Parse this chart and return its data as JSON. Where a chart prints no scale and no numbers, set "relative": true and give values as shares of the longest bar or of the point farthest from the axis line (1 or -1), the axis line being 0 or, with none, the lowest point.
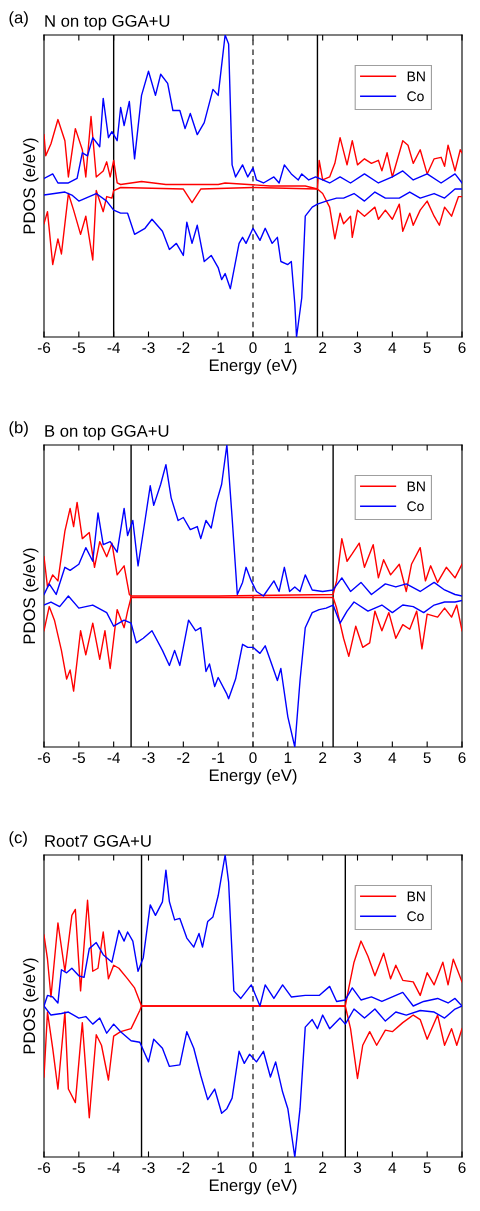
{
  "chart_data": [
    {
      "type": "line",
      "title": "N on top GGA+U",
      "annotations": [
        "(a)"
      ],
      "xlabel": "Energy (eV)",
      "ylabel": "PDOS (e/eV)",
      "relative": true,
      "xlim": [
        -6,
        6
      ],
      "xticks": [
        -6,
        -5,
        -4,
        -3,
        -2,
        -1,
        0,
        1,
        2,
        3,
        4,
        5,
        6
      ],
      "tick_labels": "x",
      "grid": false,
      "legend": "top right",
      "ref_lines": [
        {
          "axis": "x",
          "value": -4.0,
          "color": "#000000",
          "line_style": "solid"
        },
        {
          "axis": "x",
          "value": 1.85,
          "color": "#000000",
          "line_style": "solid"
        },
        {
          "axis": "x",
          "value": 0,
          "color": "#333333",
          "line_style": "dashed"
        }
      ],
      "series": [
        {
          "name": "BN",
          "color": "#ff0000",
          "x": [
            -6,
            -5.95,
            -5.8,
            -5.6,
            -5.4,
            -5.3,
            -5.1,
            -4.9,
            -4.8,
            -4.65,
            -4.5,
            -4.3,
            -4.2,
            -4.1,
            -4.0,
            -3.9,
            -3.8,
            -3.2,
            -2.5,
            -1.0,
            -0.8,
            0.5,
            1.5,
            1.85,
            1.9,
            2.0,
            2.2,
            2.35,
            2.5,
            2.7,
            2.85,
            3.0,
            3.2,
            3.4,
            3.6,
            3.7,
            3.85,
            4.0,
            4.3,
            4.45,
            4.6,
            4.8,
            5.0,
            5.2,
            5.4,
            5.5,
            5.6,
            5.8,
            5.95,
            6.0
          ],
          "values": [
            0.67,
            0.6,
            0.64,
            0.72,
            0.65,
            0.53,
            0.69,
            0.62,
            0.53,
            0.73,
            0.53,
            0.55,
            0.58,
            0.53,
            0.585,
            0.51,
            0.505,
            0.515,
            0.505,
            0.505,
            0.51,
            0.5,
            0.5,
            0.49,
            0.585,
            0.52,
            0.53,
            0.575,
            0.66,
            0.57,
            0.65,
            0.57,
            0.59,
            0.575,
            0.585,
            0.55,
            0.61,
            0.53,
            0.65,
            0.635,
            0.575,
            0.62,
            0.54,
            0.59,
            0.595,
            0.565,
            0.635,
            0.55,
            0.62,
            0.61
          ]
        },
        {
          "color": "#ff0000",
          "x": [
            -6,
            -5.9,
            -5.75,
            -5.6,
            -5.5,
            -5.3,
            -5.15,
            -4.95,
            -4.8,
            -4.6,
            -4.5,
            -4.3,
            -4.2,
            -4.05,
            -4.0,
            -3.8,
            -2.0,
            -1.75,
            -1.5,
            0,
            1.85,
            1.9,
            2.0,
            2.2,
            2.35,
            2.5,
            2.6,
            2.8,
            2.85,
            3.0,
            3.2,
            3.5,
            3.6,
            3.8,
            4.0,
            4.2,
            4.3,
            4.5,
            4.6,
            4.8,
            5.0,
            5.2,
            5.35,
            5.5,
            5.7,
            5.9,
            6.0
          ],
          "values": [
            0.375,
            0.415,
            0.24,
            0.325,
            0.275,
            0.475,
            0.42,
            0.34,
            0.4,
            0.255,
            0.485,
            0.415,
            0.465,
            0.46,
            0.485,
            0.495,
            0.49,
            0.445,
            0.49,
            0.495,
            0.49,
            0.485,
            0.475,
            0.43,
            0.325,
            0.41,
            0.375,
            0.4,
            0.33,
            0.42,
            0.4,
            0.43,
            0.39,
            0.42,
            0.39,
            0.44,
            0.35,
            0.41,
            0.37,
            0.42,
            0.45,
            0.4,
            0.37,
            0.43,
            0.4,
            0.465,
            0.465
          ]
        },
        {
          "name": "Co",
          "color": "#0000ff",
          "x": [
            -6,
            -5.75,
            -5.6,
            -5.3,
            -5.05,
            -4.9,
            -4.75,
            -4.6,
            -4.4,
            -4.3,
            -4.15,
            -4.05,
            -3.9,
            -3.8,
            -3.7,
            -3.55,
            -3.4,
            -3.2,
            -3.0,
            -2.8,
            -2.65,
            -2.45,
            -2.3,
            -2.1,
            -1.95,
            -1.8,
            -1.6,
            -1.4,
            -1.15,
            -1.0,
            -0.8,
            -0.7,
            -0.6,
            -0.5,
            -0.3,
            -0.15,
            0,
            0.1,
            0.3,
            0.6,
            0.75,
            0.9,
            1.1,
            1.3,
            1.4,
            1.6,
            1.8,
            2.0,
            2.2,
            2.5,
            2.8,
            3.2,
            3.6,
            4.0,
            4.3,
            4.6,
            5.0,
            5.4,
            5.8,
            6.0
          ],
          "values": [
            0.525,
            0.54,
            0.51,
            0.51,
            0.525,
            0.61,
            0.6,
            0.66,
            0.63,
            0.79,
            0.66,
            0.68,
            0.65,
            0.76,
            0.7,
            0.78,
            0.59,
            0.8,
            0.88,
            0.8,
            0.87,
            0.84,
            0.75,
            0.75,
            0.69,
            0.74,
            0.67,
            0.71,
            0.82,
            0.8,
            1.0,
            0.97,
            0.57,
            0.53,
            0.57,
            0.53,
            0.56,
            0.52,
            0.51,
            0.53,
            0.51,
            0.57,
            0.54,
            0.52,
            0.54,
            0.52,
            0.53,
            0.52,
            0.51,
            0.53,
            0.51,
            0.54,
            0.51,
            0.53,
            0.55,
            0.52,
            0.54,
            0.51,
            0.54,
            0.51
          ]
        },
        {
          "color": "#0000ff",
          "x": [
            -6,
            -5.7,
            -5.4,
            -5.2,
            -5.0,
            -4.8,
            -4.5,
            -4.2,
            -4.0,
            -3.8,
            -3.6,
            -3.4,
            -3.1,
            -2.9,
            -2.6,
            -2.4,
            -2.2,
            -2.0,
            -1.9,
            -1.75,
            -1.6,
            -1.4,
            -1.2,
            -1.0,
            -0.9,
            -0.8,
            -0.65,
            -0.4,
            -0.3,
            -0.2,
            0,
            0.2,
            0.35,
            0.55,
            0.7,
            0.8,
            1.0,
            1.1,
            1.2,
            1.25,
            1.4,
            1.5,
            1.7,
            1.85,
            2.1,
            2.4,
            2.6,
            2.9,
            3.2,
            3.5,
            3.8,
            4.2,
            4.5,
            4.8,
            5.2,
            5.5,
            5.8,
            6.0
          ],
          "values": [
            0.47,
            0.475,
            0.48,
            0.47,
            0.45,
            0.46,
            0.475,
            0.45,
            0.42,
            0.41,
            0.41,
            0.34,
            0.36,
            0.39,
            0.35,
            0.29,
            0.31,
            0.27,
            0.38,
            0.31,
            0.37,
            0.25,
            0.27,
            0.23,
            0.19,
            0.21,
            0.16,
            0.31,
            0.33,
            0.31,
            0.36,
            0.32,
            0.36,
            0.31,
            0.33,
            0.25,
            0.24,
            0.25,
            0.11,
            0.0,
            0.13,
            0.4,
            0.43,
            0.44,
            0.45,
            0.46,
            0.46,
            0.475,
            0.45,
            0.48,
            0.46,
            0.46,
            0.48,
            0.46,
            0.475,
            0.46,
            0.49,
            0.49
          ]
        }
      ]
    },
    {
      "type": "line",
      "title": "B on top GGA+U",
      "annotations": [
        "(b)"
      ],
      "xlabel": "Energy (eV)",
      "ylabel": "PDOS (e/eV)",
      "relative": true,
      "xlim": [
        -6,
        6
      ],
      "xticks": [
        -6,
        -5,
        -4,
        -3,
        -2,
        -1,
        0,
        1,
        2,
        3,
        4,
        5,
        6
      ],
      "tick_labels": "x",
      "grid": false,
      "legend": "top right",
      "ref_lines": [
        {
          "axis": "x",
          "value": -3.5,
          "color": "#000000",
          "line_style": "solid"
        },
        {
          "axis": "x",
          "value": 2.3,
          "color": "#000000",
          "line_style": "solid"
        },
        {
          "axis": "x",
          "value": 0,
          "color": "#333333",
          "line_style": "dashed"
        }
      ],
      "series": [
        {
          "name": "BN",
          "color": "#ff0000",
          "x": [
            -6,
            -5.9,
            -5.75,
            -5.6,
            -5.4,
            -5.25,
            -5.15,
            -5.05,
            -4.9,
            -4.7,
            -4.55,
            -4.4,
            -4.2,
            -4.05,
            -3.9,
            -3.7,
            -3.55,
            -3.5,
            -1.0,
            2.3,
            2.4,
            2.55,
            2.7,
            2.85,
            3.05,
            3.2,
            3.45,
            3.6,
            3.75,
            3.95,
            4.2,
            4.4,
            4.55,
            4.8,
            4.95,
            5.1,
            5.3,
            5.55,
            5.8,
            6.0
          ],
          "values": [
            0.63,
            0.53,
            0.57,
            0.55,
            0.715,
            0.79,
            0.73,
            0.81,
            0.69,
            0.71,
            0.595,
            0.68,
            0.63,
            0.675,
            0.57,
            0.6,
            0.505,
            0.5,
            0.5,
            0.505,
            0.55,
            0.69,
            0.615,
            0.64,
            0.675,
            0.595,
            0.67,
            0.56,
            0.62,
            0.57,
            0.605,
            0.515,
            0.605,
            0.66,
            0.55,
            0.6,
            0.545,
            0.595,
            0.56,
            0.605
          ]
        },
        {
          "color": "#ff0000",
          "x": [
            -6,
            -5.85,
            -5.7,
            -5.5,
            -5.35,
            -5.25,
            -5.15,
            -4.95,
            -4.8,
            -4.6,
            -4.4,
            -4.25,
            -4.1,
            -3.9,
            -3.7,
            -3.6,
            -3.5,
            2.3,
            2.4,
            2.6,
            2.75,
            2.95,
            3.15,
            3.35,
            3.5,
            3.7,
            3.9,
            4.1,
            4.3,
            4.5,
            4.7,
            4.85,
            5.0,
            5.3,
            5.5,
            5.7,
            5.85,
            6.0
          ],
          "values": [
            0.385,
            0.465,
            0.42,
            0.32,
            0.225,
            0.255,
            0.185,
            0.385,
            0.305,
            0.41,
            0.29,
            0.385,
            0.26,
            0.455,
            0.395,
            0.45,
            0.495,
            0.495,
            0.46,
            0.36,
            0.3,
            0.4,
            0.33,
            0.345,
            0.45,
            0.385,
            0.445,
            0.36,
            0.405,
            0.39,
            0.45,
            0.325,
            0.44,
            0.43,
            0.46,
            0.43,
            0.47,
            0.385
          ]
        },
        {
          "name": "Co",
          "color": "#0000ff",
          "x": [
            -6,
            -5.85,
            -5.65,
            -5.4,
            -5.25,
            -5.0,
            -4.8,
            -4.6,
            -4.45,
            -4.3,
            -4.1,
            -3.9,
            -3.7,
            -3.6,
            -3.45,
            -3.3,
            -3.1,
            -2.95,
            -2.85,
            -2.65,
            -2.5,
            -2.35,
            -2.15,
            -2.0,
            -1.8,
            -1.6,
            -1.5,
            -1.35,
            -1.2,
            -1.05,
            -0.9,
            -0.75,
            -0.6,
            -0.45,
            -0.3,
            -0.2,
            -0.05,
            0.1,
            0.3,
            0.6,
            0.75,
            0.9,
            1.05,
            1.2,
            1.35,
            1.5,
            1.7,
            2.0,
            2.3,
            2.55,
            2.8,
            3.1,
            3.4,
            3.8,
            4.1,
            4.4,
            4.8,
            5.2,
            5.5,
            5.8,
            6.0
          ],
          "values": [
            0.505,
            0.54,
            0.505,
            0.595,
            0.585,
            0.605,
            0.66,
            0.615,
            0.775,
            0.67,
            0.68,
            0.645,
            0.79,
            0.7,
            0.75,
            0.6,
            0.75,
            0.865,
            0.8,
            0.87,
            0.935,
            0.825,
            0.75,
            0.76,
            0.72,
            0.73,
            0.69,
            0.75,
            0.725,
            0.81,
            0.87,
            1.0,
            0.76,
            0.505,
            0.545,
            0.595,
            0.55,
            0.515,
            0.5,
            0.55,
            0.515,
            0.595,
            0.515,
            0.53,
            0.515,
            0.57,
            0.52,
            0.515,
            0.52,
            0.56,
            0.515,
            0.545,
            0.505,
            0.54,
            0.53,
            0.54,
            0.515,
            0.545,
            0.52,
            0.505,
            0.5
          ]
        },
        {
          "color": "#0000ff",
          "x": [
            -6,
            -5.8,
            -5.55,
            -5.3,
            -5.0,
            -4.6,
            -4.2,
            -4.0,
            -3.7,
            -3.5,
            -3.35,
            -3.15,
            -2.9,
            -2.6,
            -2.4,
            -2.25,
            -2.1,
            -1.85,
            -1.65,
            -1.5,
            -1.35,
            -1.25,
            -1.1,
            -1.0,
            -0.75,
            -0.7,
            -0.5,
            -0.3,
            -0.15,
            0,
            0.2,
            0.35,
            0.55,
            0.7,
            0.8,
            1.0,
            1.2,
            1.35,
            1.5,
            1.7,
            1.9,
            2.1,
            2.3,
            2.5,
            2.7,
            2.9,
            3.3,
            3.7,
            4.0,
            4.3,
            4.6,
            4.9,
            5.2,
            5.5,
            5.8,
            6.0
          ],
          "values": [
            0.47,
            0.48,
            0.465,
            0.5,
            0.46,
            0.47,
            0.445,
            0.4,
            0.42,
            0.41,
            0.345,
            0.36,
            0.385,
            0.32,
            0.27,
            0.32,
            0.27,
            0.42,
            0.385,
            0.395,
            0.25,
            0.275,
            0.2,
            0.23,
            0.175,
            0.16,
            0.225,
            0.34,
            0.33,
            0.33,
            0.31,
            0.335,
            0.27,
            0.22,
            0.26,
            0.1,
            0.0,
            0.22,
            0.395,
            0.445,
            0.455,
            0.46,
            0.47,
            0.41,
            0.45,
            0.48,
            0.45,
            0.47,
            0.445,
            0.47,
            0.465,
            0.445,
            0.47,
            0.48,
            0.48,
            0.485
          ]
        }
      ]
    },
    {
      "type": "line",
      "title": "Root7 GGA+U",
      "annotations": [
        "(c)"
      ],
      "xlabel": "Energy (eV)",
      "ylabel": "PDOS (e/eV)",
      "relative": true,
      "xlim": [
        -6,
        6
      ],
      "xticks": [
        -6,
        -5,
        -4,
        -3,
        -2,
        -1,
        0,
        1,
        2,
        3,
        4,
        5,
        6
      ],
      "tick_labels": "x",
      "grid": false,
      "legend": "top right",
      "ref_lines": [
        {
          "axis": "x",
          "value": -3.2,
          "color": "#000000",
          "line_style": "solid"
        },
        {
          "axis": "x",
          "value": 2.65,
          "color": "#000000",
          "line_style": "solid"
        },
        {
          "axis": "x",
          "value": 0,
          "color": "#333333",
          "line_style": "dashed"
        }
      ],
      "series": [
        {
          "name": "BN",
          "color": "#ff0000",
          "x": [
            -6,
            -5.9,
            -5.8,
            -5.6,
            -5.4,
            -5.2,
            -5.1,
            -4.95,
            -4.75,
            -4.6,
            -4.45,
            -4.3,
            -4.15,
            -4.0,
            -3.85,
            -3.6,
            -3.4,
            -3.2,
            2.65,
            2.75,
            2.9,
            3.1,
            3.3,
            3.5,
            3.75,
            3.95,
            4.1,
            4.3,
            4.6,
            4.8,
            5.0,
            5.2,
            5.45,
            5.6,
            5.75,
            6.0
          ],
          "values": [
            0.735,
            0.655,
            0.53,
            0.775,
            0.615,
            0.8,
            0.82,
            0.55,
            0.85,
            0.615,
            0.625,
            0.745,
            0.59,
            0.635,
            0.625,
            0.59,
            0.56,
            0.5,
            0.5,
            0.56,
            0.645,
            0.715,
            0.665,
            0.6,
            0.675,
            0.59,
            0.635,
            0.585,
            0.58,
            0.535,
            0.61,
            0.57,
            0.645,
            0.57,
            0.655,
            0.58
          ]
        },
        {
          "color": "#ff0000",
          "x": [
            -6,
            -5.9,
            -5.75,
            -5.6,
            -5.4,
            -5.3,
            -5.1,
            -4.9,
            -4.7,
            -4.5,
            -4.35,
            -4.15,
            -4.0,
            -3.8,
            -3.5,
            -3.25,
            -3.2,
            2.65,
            2.8,
            3.0,
            3.15,
            3.35,
            3.55,
            3.8,
            4.0,
            4.3,
            4.6,
            4.8,
            5.0,
            5.3,
            5.5,
            5.7,
            5.85,
            6.0
          ],
          "values": [
            0.265,
            0.48,
            0.36,
            0.225,
            0.48,
            0.225,
            0.18,
            0.445,
            0.13,
            0.405,
            0.37,
            0.255,
            0.4,
            0.415,
            0.425,
            0.485,
            0.5,
            0.5,
            0.425,
            0.26,
            0.37,
            0.415,
            0.37,
            0.42,
            0.415,
            0.445,
            0.47,
            0.455,
            0.39,
            0.47,
            0.37,
            0.425,
            0.37,
            0.425
          ]
        },
        {
          "name": "Co",
          "color": "#0000ff",
          "x": [
            -6,
            -5.9,
            -5.75,
            -5.6,
            -5.5,
            -5.35,
            -5.2,
            -5.0,
            -4.85,
            -4.7,
            -4.5,
            -4.3,
            -4.05,
            -3.85,
            -3.7,
            -3.6,
            -3.45,
            -3.3,
            -3.15,
            -2.95,
            -2.8,
            -2.6,
            -2.5,
            -2.4,
            -2.25,
            -2.1,
            -1.9,
            -1.7,
            -1.55,
            -1.45,
            -1.3,
            -1.15,
            -1.0,
            -0.8,
            -0.7,
            -0.55,
            -0.35,
            -0.05,
            0.2,
            0.35,
            0.6,
            0.85,
            1.1,
            1.5,
            1.9,
            2.2,
            2.4,
            2.65,
            2.85,
            3.1,
            3.4,
            3.7,
            4.0,
            4.3,
            4.6,
            4.9,
            5.3,
            5.6,
            5.8,
            6.0
          ],
          "values": [
            0.5,
            0.535,
            0.53,
            0.51,
            0.62,
            0.61,
            0.625,
            0.6,
            0.595,
            0.69,
            0.71,
            0.67,
            0.645,
            0.75,
            0.715,
            0.745,
            0.715,
            0.615,
            0.66,
            0.835,
            0.8,
            0.845,
            0.95,
            0.845,
            0.785,
            0.79,
            0.725,
            0.695,
            0.74,
            0.695,
            0.78,
            0.795,
            0.865,
            1.0,
            0.91,
            0.55,
            0.525,
            0.57,
            0.5,
            0.57,
            0.525,
            0.57,
            0.53,
            0.535,
            0.535,
            0.565,
            0.515,
            0.52,
            0.56,
            0.52,
            0.53,
            0.515,
            0.53,
            0.545,
            0.5,
            0.515,
            0.525,
            0.51,
            0.525,
            0.5
          ]
        },
        {
          "color": "#0000ff",
          "x": [
            -6,
            -5.8,
            -5.5,
            -5.3,
            -5.0,
            -4.8,
            -4.6,
            -4.4,
            -4.2,
            -4.0,
            -3.8,
            -3.5,
            -3.25,
            -3.0,
            -2.85,
            -2.6,
            -2.4,
            -2.1,
            -1.9,
            -1.7,
            -1.5,
            -1.3,
            -1.1,
            -0.9,
            -0.75,
            -0.6,
            -0.4,
            -0.25,
            -0.1,
            0.1,
            0.3,
            0.5,
            0.65,
            0.85,
            1.0,
            1.2,
            1.35,
            1.5,
            1.7,
            1.85,
            2.0,
            2.2,
            2.5,
            2.65,
            2.9,
            3.2,
            3.5,
            3.8,
            4.1,
            4.4,
            4.8,
            5.2,
            5.5,
            5.8,
            6.0
          ],
          "values": [
            0.5,
            0.47,
            0.475,
            0.48,
            0.46,
            0.465,
            0.44,
            0.46,
            0.41,
            0.44,
            0.415,
            0.385,
            0.38,
            0.315,
            0.39,
            0.36,
            0.3,
            0.305,
            0.415,
            0.36,
            0.27,
            0.19,
            0.225,
            0.145,
            0.16,
            0.195,
            0.35,
            0.31,
            0.34,
            0.315,
            0.35,
            0.265,
            0.315,
            0.215,
            0.16,
            0.0,
            0.16,
            0.43,
            0.455,
            0.425,
            0.47,
            0.425,
            0.46,
            0.44,
            0.49,
            0.46,
            0.49,
            0.45,
            0.48,
            0.47,
            0.485,
            0.48,
            0.46,
            0.49,
            0.5
          ]
        }
      ]
    }
  ]
}
